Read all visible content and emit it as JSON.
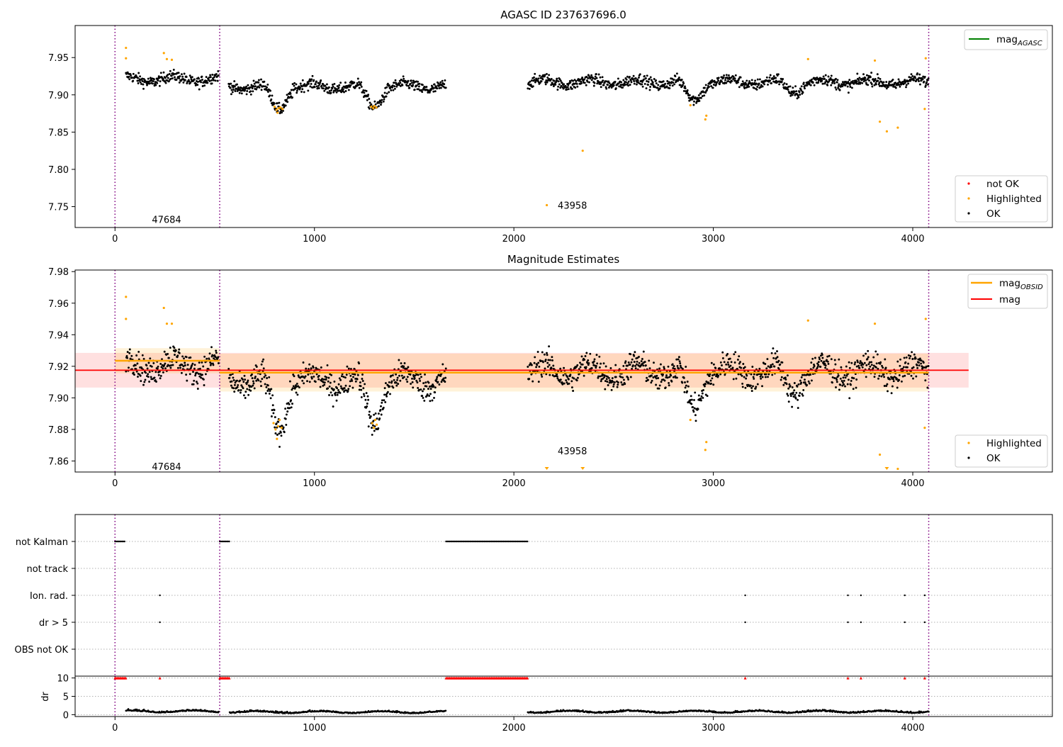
{
  "chart_data": [
    {
      "type": "scatter",
      "title": "AGASC ID 237637696.0",
      "xlabel": "",
      "ylabel": "",
      "xlim": [
        -200,
        4700
      ],
      "ylim": [
        7.722,
        7.993
      ],
      "xticks": [
        0,
        1000,
        2000,
        3000,
        4000
      ],
      "yticks": [
        7.75,
        7.8,
        7.85,
        7.9,
        7.95
      ],
      "ytick_labels": [
        "7.75",
        "7.80",
        "7.85",
        "7.90",
        "7.95"
      ],
      "obs_boundaries": [
        0,
        525,
        4080
      ],
      "annotations": [
        {
          "text": "47684",
          "x": 185,
          "y": 7.733
        },
        {
          "text": "43958",
          "x": 2220,
          "y": 7.752
        }
      ],
      "legends": [
        {
          "position": "upper right",
          "entries": [
            {
              "label": "mag",
              "subscript": "AGASC",
              "style": "line",
              "color": "#008000"
            }
          ]
        },
        {
          "position": "lower right",
          "entries": [
            {
              "label": "not OK",
              "style": "dot",
              "color": "#ff0000"
            },
            {
              "label": "Highlighted",
              "style": "dot",
              "color": "#ffa500"
            },
            {
              "label": "OK",
              "style": "dot",
              "color": "#000000"
            }
          ]
        }
      ],
      "series": [
        {
          "name": "OK",
          "color": "#000000",
          "segments": [
            {
              "x": [
                55,
                520
              ],
              "mean": 7.921
            },
            {
              "x": [
                570,
                1660
              ],
              "mean": 7.911
            },
            {
              "x": [
                2070,
                4080
              ],
              "mean": 7.917
            }
          ],
          "dips": [
            {
              "x": 820,
              "depth": 0.03
            },
            {
              "x": 1295,
              "depth": 0.026
            },
            {
              "x": 2900,
              "depth": 0.024
            },
            {
              "x": 3400,
              "depth": 0.012
            }
          ]
        },
        {
          "name": "Highlighted",
          "color": "#ffa500",
          "points": [
            [
              55,
              7.963
            ],
            [
              55,
              7.949
            ],
            [
              245,
              7.956
            ],
            [
              260,
              7.948
            ],
            [
              285,
              7.947
            ],
            [
              800,
              7.884
            ],
            [
              810,
              7.88
            ],
            [
              815,
              7.876
            ],
            [
              820,
              7.882
            ],
            [
              830,
              7.883
            ],
            [
              840,
              7.881
            ],
            [
              1285,
              7.884
            ],
            [
              1295,
              7.882
            ],
            [
              1300,
              7.885
            ],
            [
              1310,
              7.883
            ],
            [
              2165,
              7.752
            ],
            [
              2345,
              7.825
            ],
            [
              2885,
              7.886
            ],
            [
              2960,
              7.867
            ],
            [
              2965,
              7.872
            ],
            [
              3475,
              7.948
            ],
            [
              3810,
              7.946
            ],
            [
              3835,
              7.864
            ],
            [
              3870,
              7.851
            ],
            [
              3925,
              7.856
            ],
            [
              4060,
              7.881
            ],
            [
              4065,
              7.949
            ]
          ]
        }
      ]
    },
    {
      "type": "scatter",
      "title": "Magnitude Estimates",
      "xlabel": "",
      "ylabel": "",
      "xlim": [
        -200,
        4700
      ],
      "ylim": [
        7.853,
        7.981
      ],
      "xticks": [
        0,
        1000,
        2000,
        3000,
        4000
      ],
      "yticks": [
        7.86,
        7.88,
        7.9,
        7.92,
        7.94,
        7.96,
        7.98
      ],
      "ytick_labels": [
        "7.86",
        "7.88",
        "7.90",
        "7.92",
        "7.94",
        "7.96",
        "7.98"
      ],
      "obs_boundaries": [
        0,
        525,
        4080
      ],
      "annotations": [
        {
          "text": "47684",
          "x": 185,
          "y": 7.8565
        },
        {
          "text": "43958",
          "x": 2220,
          "y": 7.8665
        }
      ],
      "mag": {
        "value": 7.9175,
        "band": [
          7.9065,
          7.9285
        ],
        "x": [
          -200,
          4280
        ],
        "color": "#ff0000"
      },
      "mag_obsid": [
        {
          "x": [
            0,
            525
          ],
          "value": 7.9235,
          "band": [
            7.9155,
            7.9315
          ]
        },
        {
          "x": [
            525,
            4080
          ],
          "value": 7.916,
          "band": [
            7.904,
            7.928
          ]
        }
      ],
      "off_scale_markers": [
        2165,
        2345,
        3870
      ],
      "legends": [
        {
          "position": "upper right",
          "entries": [
            {
              "label": "mag",
              "subscript": "OBSID",
              "style": "line",
              "color": "#ffa500"
            },
            {
              "label": "mag",
              "style": "line",
              "color": "#ff0000"
            }
          ]
        },
        {
          "position": "lower right",
          "entries": [
            {
              "label": "Highlighted",
              "style": "dot",
              "color": "#ffa500"
            },
            {
              "label": "OK",
              "style": "dot",
              "color": "#000000"
            }
          ]
        }
      ],
      "series": [
        {
          "name": "OK",
          "color": "#000000",
          "segments": [
            {
              "x": [
                55,
                520
              ],
              "mean": 7.921
            },
            {
              "x": [
                570,
                1660
              ],
              "mean": 7.911
            },
            {
              "x": [
                2070,
                4080
              ],
              "mean": 7.917
            }
          ]
        },
        {
          "name": "Highlighted",
          "color": "#ffa500",
          "points": [
            [
              55,
              7.964
            ],
            [
              55,
              7.95
            ],
            [
              245,
              7.957
            ],
            [
              260,
              7.947
            ],
            [
              285,
              7.947
            ],
            [
              795,
              7.884
            ],
            [
              805,
              7.88
            ],
            [
              812,
              7.874
            ],
            [
              818,
              7.882
            ],
            [
              825,
              7.886
            ],
            [
              835,
              7.881
            ],
            [
              1290,
              7.884
            ],
            [
              1298,
              7.881
            ],
            [
              1305,
              7.886
            ],
            [
              1312,
              7.883
            ],
            [
              2885,
              7.886
            ],
            [
              2960,
              7.867
            ],
            [
              2965,
              7.872
            ],
            [
              3475,
              7.949
            ],
            [
              3810,
              7.947
            ],
            [
              3835,
              7.864
            ],
            [
              3925,
              7.855
            ],
            [
              4060,
              7.881
            ],
            [
              4065,
              7.95
            ]
          ]
        }
      ]
    },
    {
      "type": "scatter",
      "title": "",
      "categories": [
        "not Kalman",
        "not track",
        "Ion. rad.",
        "dr > 5",
        "OBS not OK"
      ],
      "xlim": [
        -200,
        4700
      ],
      "obs_boundaries": [
        0,
        525,
        4080
      ],
      "flags": {
        "not Kalman": {
          "ranges": [
            [
              0,
              50
            ],
            [
              525,
              575
            ],
            [
              1660,
              2070
            ]
          ]
        },
        "not track": {
          "ranges": []
        },
        "Ion. rad.": {
          "points": [
            225,
            3160,
            3675,
            3740,
            3960,
            4060
          ]
        },
        "dr > 5": {
          "points": [
            225,
            3160,
            3675,
            3740,
            3960,
            4060
          ]
        },
        "OBS not OK": {
          "points": []
        }
      }
    },
    {
      "type": "scatter",
      "title": "",
      "ylabel": "dr",
      "xlim": [
        -200,
        4700
      ],
      "ylim": [
        -0.5,
        10.5
      ],
      "xticks": [
        0,
        1000,
        2000,
        3000,
        4000
      ],
      "yticks": [
        0,
        5,
        10
      ],
      "ytick_labels": [
        "0",
        "5",
        "10"
      ],
      "obs_boundaries": [
        0,
        525,
        4080
      ],
      "clipped_points": {
        "value": 10,
        "color": "#ff0000",
        "ranges": [
          [
            0,
            55
          ],
          [
            525,
            575
          ],
          [
            1660,
            2070
          ]
        ],
        "points": [
          225,
          3160,
          3675,
          3740,
          3960,
          4060
        ]
      },
      "series": [
        {
          "name": "dr",
          "color": "#000000",
          "segments": [
            {
              "x": [
                55,
                520
              ],
              "mean": 0.8
            },
            {
              "x": [
                575,
                1660
              ],
              "mean": 0.6
            },
            {
              "x": [
                2070,
                4080
              ],
              "mean": 0.7
            }
          ]
        }
      ]
    }
  ]
}
